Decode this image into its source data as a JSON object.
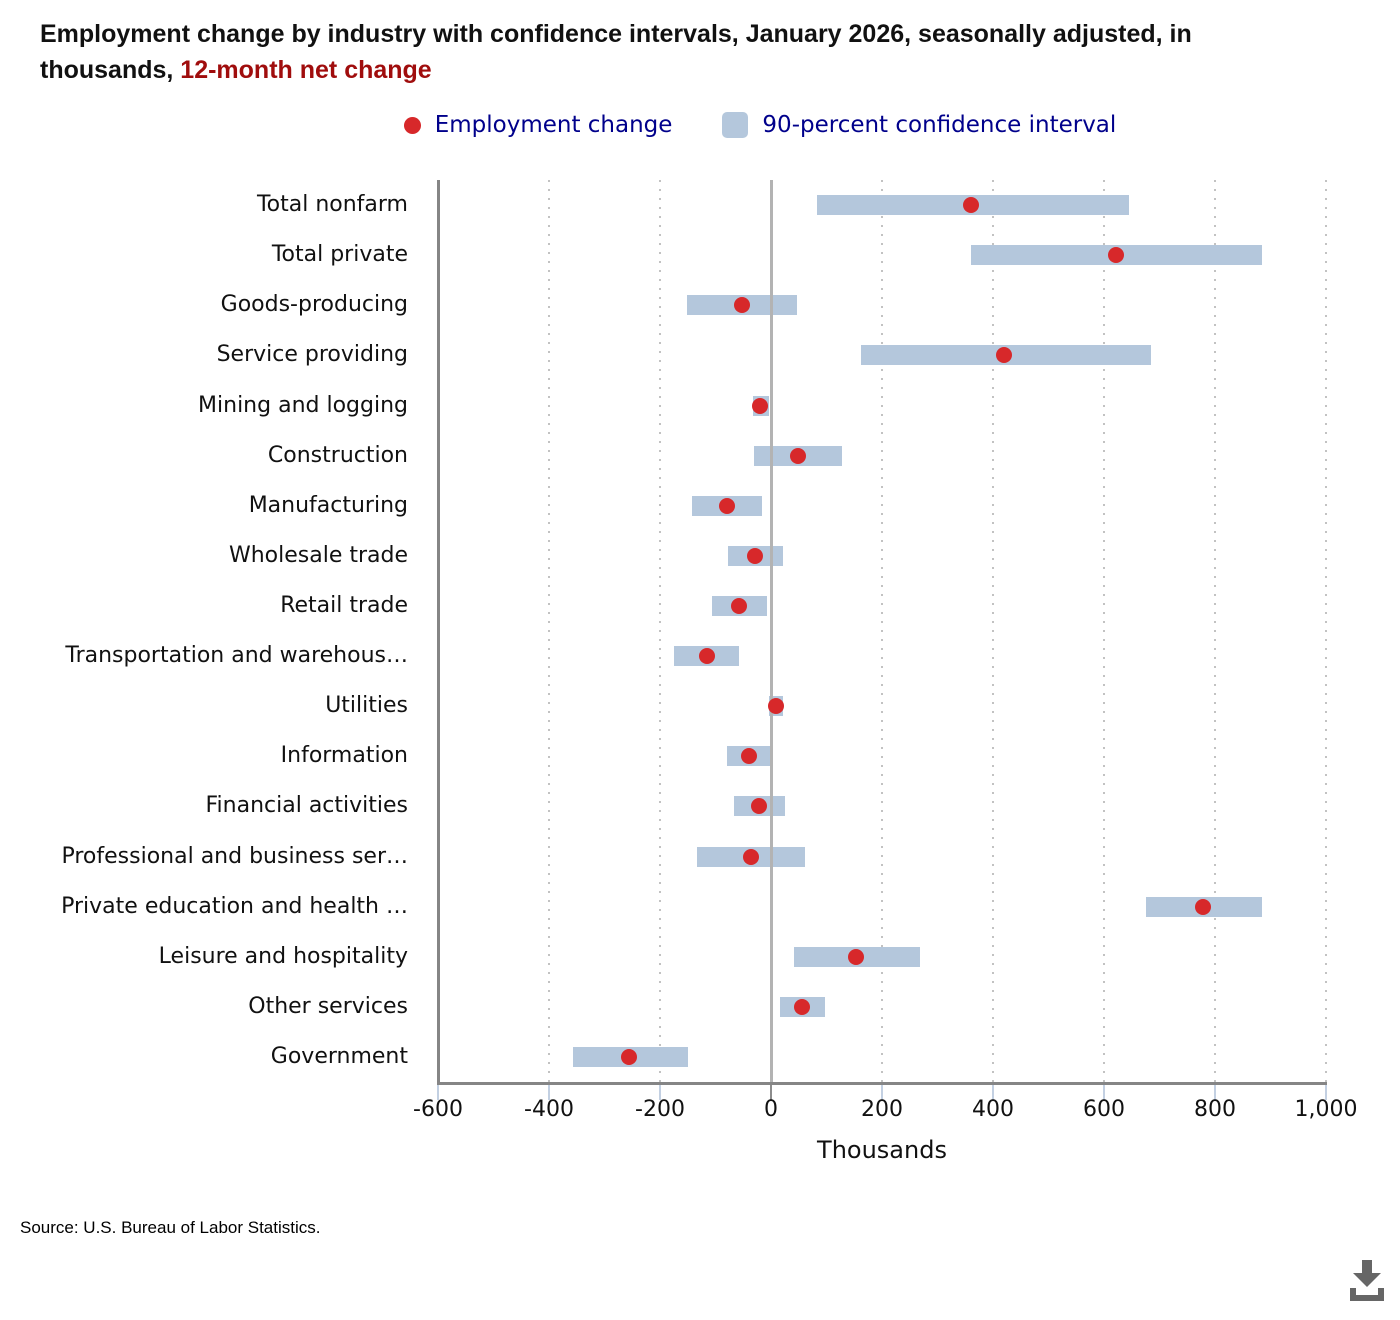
{
  "title": {
    "text_black": "Employment change by industry with confidence intervals, January 2026, seasonally adjusted, in thousands, ",
    "text_red": "12-month net change"
  },
  "legend": {
    "items": [
      {
        "marker": "dot-icon",
        "label": "Employment change"
      },
      {
        "marker": "swatch-icon",
        "label": "90-percent confidence interval"
      }
    ]
  },
  "chart_data": {
    "type": "scatter",
    "subtype": "dot-with-confidence-interval-bars",
    "title": "Employment change by industry with confidence intervals, January 2026, seasonally adjusted, in thousands, 12-month net change",
    "units": "thousands",
    "x_axis": {
      "label": "Thousands",
      "min": -600,
      "max": 1000,
      "tick_interval": 200,
      "ticks": [
        {
          "value": -600,
          "label": "-600"
        },
        {
          "value": -400,
          "label": "-400"
        },
        {
          "value": -200,
          "label": "-200"
        },
        {
          "value": 0,
          "label": "0"
        },
        {
          "value": 200,
          "label": "200"
        },
        {
          "value": 400,
          "label": "400"
        },
        {
          "value": 600,
          "label": "600"
        },
        {
          "value": 800,
          "label": "800"
        },
        {
          "value": 1000,
          "label": "1,000"
        }
      ],
      "gridlines": [
        -400,
        -200,
        200,
        400,
        600,
        800,
        1000
      ],
      "zero_line": 0
    },
    "rows": [
      {
        "category": "Total nonfarm",
        "value": 361,
        "ci_low": 83,
        "ci_high": 645
      },
      {
        "category": "Total private",
        "value": 622,
        "ci_low": 361,
        "ci_high": 884
      },
      {
        "category": "Goods-producing",
        "value": -53,
        "ci_low": -151,
        "ci_high": 46
      },
      {
        "category": "Service providing",
        "value": 420,
        "ci_low": 162,
        "ci_high": 684
      },
      {
        "category": "Mining and logging",
        "value": -20,
        "ci_low": -33,
        "ci_high": -3
      },
      {
        "category": "Construction",
        "value": 49,
        "ci_low": -30,
        "ci_high": 128
      },
      {
        "category": "Manufacturing",
        "value": -80,
        "ci_low": -143,
        "ci_high": -17
      },
      {
        "category": "Wholesale trade",
        "value": -28,
        "ci_low": -78,
        "ci_high": 22
      },
      {
        "category": "Retail trade",
        "value": -57,
        "ci_low": -107,
        "ci_high": -7
      },
      {
        "category": "Transportation and warehous…",
        "value": -116,
        "ci_low": -175,
        "ci_high": -57
      },
      {
        "category": "Utilities",
        "value": 9,
        "ci_low": -4,
        "ci_high": 22
      },
      {
        "category": "Information",
        "value": -40,
        "ci_low": -79,
        "ci_high": 0
      },
      {
        "category": "Financial activities",
        "value": -21,
        "ci_low": -67,
        "ci_high": 25
      },
      {
        "category": "Professional and business ser…",
        "value": -36,
        "ci_low": -134,
        "ci_high": 61
      },
      {
        "category": "Private education and health …",
        "value": 778,
        "ci_low": 675,
        "ci_high": 885
      },
      {
        "category": "Leisure and hospitality",
        "value": 154,
        "ci_low": 41,
        "ci_high": 268
      },
      {
        "category": "Other services",
        "value": 56,
        "ci_low": 17,
        "ci_high": 97
      },
      {
        "category": "Government",
        "value": -256,
        "ci_low": -356,
        "ci_high": -149
      }
    ],
    "legend_position": "top-center",
    "grid": "vertical-dashed"
  },
  "source": "Source: U.S. Bureau of Labor Statistics.",
  "colors": {
    "dot_red": "#d7282a",
    "ci_bar_blue": "#b4c7dc",
    "legend_text_navy": "#00008b",
    "title_highlight_red": "#a00d0d",
    "axis_gray": "#858585",
    "zero_line_gray": "#b3b3b3",
    "gridline_gray": "#c2c2c2",
    "tick_light_blue": "#c3d0e2",
    "download_icon_gray": "#666666"
  }
}
